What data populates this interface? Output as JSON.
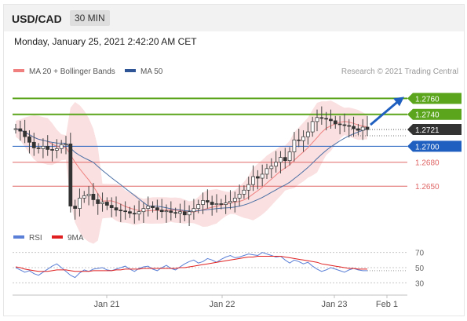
{
  "header": {
    "symbol": "USD/CAD",
    "timeframe": "30 MIN"
  },
  "datetime": "Monday, January 25, 2021 2:42:20 AM CET",
  "copyright": "Research © 2021 Trading Central",
  "colors": {
    "bb": "#f5c6c6",
    "ma20": "#f08080",
    "ma50": "#4a6fa5",
    "res": "#5aa51c",
    "pivot": "#1f5fbf",
    "sup": "#e06666",
    "cur": "#333333",
    "up": "#3b8a2e",
    "down": "#c0392b",
    "rsi": "#5a7fd6",
    "nine": "#e02020"
  },
  "chart_data": [
    {
      "type": "candlestick",
      "legend": [
        {
          "name": "MA 20 + Bollinger Bands",
          "color": "#f08080"
        },
        {
          "name": "MA 50",
          "color": "#2f5597"
        }
      ],
      "x_ticks": [
        "Jan 21",
        "Jan 22",
        "Jan 23",
        "Feb 1"
      ],
      "levels": [
        {
          "value": 1.276,
          "label": "1.2760",
          "kind": "resistance"
        },
        {
          "value": 1.274,
          "label": "1.2740",
          "kind": "resistance"
        },
        {
          "value": 1.2721,
          "label": "1.2721",
          "kind": "current"
        },
        {
          "value": 1.27,
          "label": "1.2700",
          "kind": "pivot"
        },
        {
          "value": 1.268,
          "label": "1.2680",
          "kind": "support"
        },
        {
          "value": 1.265,
          "label": "1.2650",
          "kind": "support"
        }
      ],
      "ylim": [
        1.26,
        1.2785
      ],
      "price_path": [
        1.2722,
        1.2719,
        1.2712,
        1.2705,
        1.2698,
        1.2697,
        1.27,
        1.2696,
        1.2695,
        1.2697,
        1.2702,
        1.2703,
        1.2625,
        1.2622,
        1.2635,
        1.2638,
        1.264,
        1.2633,
        1.2628,
        1.263,
        1.2626,
        1.2623,
        1.262,
        1.2619,
        1.2618,
        1.2616,
        1.2615,
        1.2618,
        1.2622,
        1.2625,
        1.2623,
        1.262,
        1.2618,
        1.2619,
        1.2617,
        1.2616,
        1.2618,
        1.2614,
        1.2618,
        1.2622,
        1.2627,
        1.2632,
        1.263,
        1.2627,
        1.2628,
        1.2627,
        1.2629,
        1.2631,
        1.2635,
        1.264,
        1.2645,
        1.2652,
        1.2662,
        1.266,
        1.2665,
        1.2672,
        1.2675,
        1.268,
        1.2686,
        1.2682,
        1.2693,
        1.2708,
        1.2707,
        1.2712,
        1.2718,
        1.2731,
        1.2736,
        1.2735,
        1.2734,
        1.2732,
        1.2728,
        1.2727,
        1.2726,
        1.2725,
        1.2722,
        1.272,
        1.2724,
        1.2721
      ],
      "arrow_target": 1.276
    },
    {
      "type": "line",
      "legend": [
        {
          "name": "RSI",
          "color": "#5a7fd6"
        },
        {
          "name": "9MA",
          "color": "#e02020"
        }
      ],
      "y_ticks": [
        70,
        50,
        30
      ],
      "ylim": [
        20,
        80
      ],
      "series": [
        {
          "name": "RSI",
          "values": [
            50,
            47,
            44,
            46,
            42,
            40,
            44,
            48,
            52,
            55,
            50,
            45,
            40,
            37,
            43,
            47,
            45,
            48,
            49,
            50,
            47,
            46,
            48,
            50,
            52,
            48,
            45,
            49,
            51,
            52,
            48,
            46,
            50,
            53,
            49,
            47,
            51,
            55,
            58,
            60,
            56,
            58,
            62,
            60,
            57,
            61,
            64,
            66,
            63,
            64,
            66,
            68,
            67,
            66,
            70,
            68,
            66,
            64,
            65,
            60,
            56,
            60,
            58,
            55,
            57,
            52,
            48,
            45,
            47,
            50,
            48,
            46,
            44,
            47,
            49,
            47,
            46,
            46
          ]
        },
        {
          "name": "9MA",
          "values": [
            51,
            50,
            48,
            47,
            46,
            45,
            45,
            45,
            46,
            47,
            47,
            47,
            46,
            45,
            45,
            45,
            45,
            46,
            46,
            46,
            46,
            46,
            47,
            47,
            48,
            48,
            48,
            48,
            49,
            49,
            49,
            49,
            49,
            49,
            49,
            49,
            50,
            50,
            51,
            52,
            53,
            54,
            55,
            56,
            57,
            58,
            59,
            60,
            61,
            62,
            63,
            64,
            64,
            65,
            65,
            65,
            65,
            65,
            65,
            64,
            63,
            62,
            61,
            60,
            59,
            58,
            57,
            55,
            54,
            53,
            52,
            51,
            50,
            49,
            49,
            48,
            48,
            48
          ]
        }
      ]
    }
  ]
}
